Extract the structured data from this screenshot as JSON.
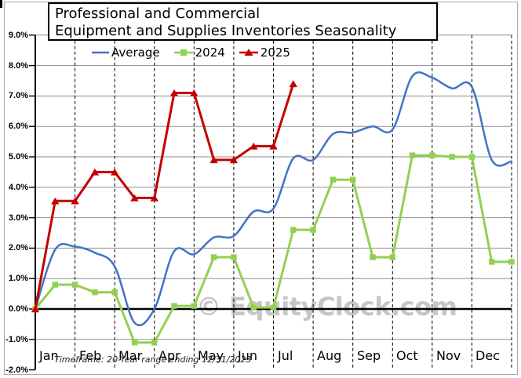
{
  "title": {
    "line1": "Professional and Commercial",
    "line2": "Equipment and Supplies Inventories Seasonality"
  },
  "legend": {
    "items": [
      {
        "label": "Average",
        "color": "#4472C4",
        "marker": "line"
      },
      {
        "label": "2024",
        "color": "#92D050",
        "marker": "square"
      },
      {
        "label": "2025",
        "color": "#C40000",
        "marker": "triangle"
      }
    ]
  },
  "watermark": "© EquityClock.com",
  "footnote": "Timeframe: 20-Year range ending 12/31/2023",
  "y_axis": {
    "labels": [
      "9.0%",
      "8.0%",
      "7.0%",
      "6.0%",
      "5.0%",
      "4.0%",
      "3.0%",
      "2.0%",
      "1.0%",
      "0.0%",
      "-1.0%",
      "-2.0%"
    ],
    "max": 9,
    "min": -2,
    "step": 1
  },
  "chart_data": {
    "type": "line",
    "title": "Professional and Commercial Equipment and Supplies Inventories Seasonality",
    "categories": [
      "Jan",
      "Feb",
      "Mar",
      "Apr",
      "May",
      "Jun",
      "Jul",
      "Aug",
      "Sep",
      "Oct",
      "Nov",
      "Dec"
    ],
    "ylim": [
      -2,
      9
    ],
    "y_unit": "%",
    "grid": true,
    "legend_position": "top",
    "sampling": "two points per month (mid-month and month-end); every series starts at 0.0% on Jan 1",
    "series": [
      {
        "name": "Average",
        "color": "#4472C4",
        "style": "smooth",
        "marker": "none",
        "values": [
          0,
          1.95,
          2.05,
          1.85,
          1.4,
          -0.45,
          0.0,
          1.9,
          1.8,
          2.35,
          2.4,
          3.2,
          3.3,
          4.95,
          4.9,
          5.75,
          5.8,
          6.0,
          5.9,
          7.65,
          7.6,
          7.25,
          7.3,
          4.9,
          4.85
        ]
      },
      {
        "name": "2024",
        "color": "#92D050",
        "style": "straight",
        "marker": "square",
        "values": [
          0,
          0.8,
          0.8,
          0.55,
          0.55,
          -1.1,
          -1.1,
          0.1,
          0.1,
          1.7,
          1.7,
          0.05,
          0.05,
          2.6,
          2.6,
          4.25,
          4.25,
          1.7,
          1.7,
          5.05,
          5.05,
          5.0,
          5.0,
          1.55,
          1.55
        ]
      },
      {
        "name": "2025",
        "color": "#C40000",
        "style": "straight",
        "marker": "triangle",
        "values": [
          0,
          3.55,
          3.55,
          4.5,
          4.5,
          3.65,
          3.65,
          7.1,
          7.1,
          4.9,
          4.9,
          5.35,
          5.35,
          7.4
        ]
      }
    ]
  }
}
